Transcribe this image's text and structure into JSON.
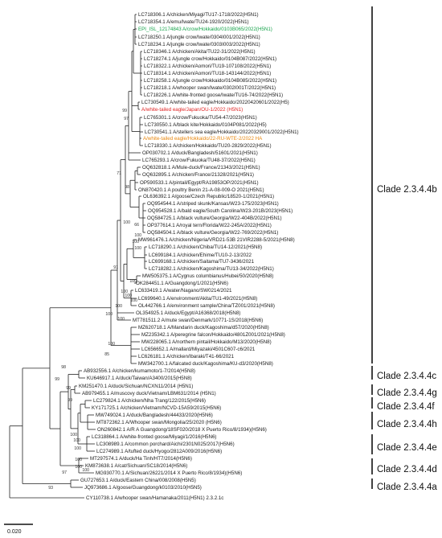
{
  "tips": [
    {
      "label": "LC718306.1 A/chicken/Miyagi/TU17-1718/2022(H5N1)",
      "color": "default"
    },
    {
      "label": "LC718354.1 A/emu/Iwate/TU24-1920/2022(H5N1)",
      "color": "default"
    },
    {
      "label": "EPI_ISL_12174843 A/crow/Hokkaido/0103B065/2022(H5N1)",
      "color": "green"
    },
    {
      "label": "LC718250.1 A/jungle crow/Iwate/0304I001/2022(H5N1)",
      "color": "default"
    },
    {
      "label": "LC718234.1 A/jungle crow/Iwate/0303I003/2022(H5N1)",
      "color": "default"
    },
    {
      "label": "LC718346.1 A/chicken/Akita/TU22-31/2022(H5N1)",
      "color": "default"
    },
    {
      "label": "LC718274.1 A/jungle crow/Hokkaido/0104B087/2022(H5N1)",
      "color": "default"
    },
    {
      "label": "LC718322.1 A/chicken/Aomori/TU19-107108/2022(H5N1)",
      "color": "default"
    },
    {
      "label": "LC718314.1 A/chicken/Aomori/TU18-143144/2022(H5N1)",
      "color": "default"
    },
    {
      "label": "LC718258.1 A/jungle crow/Hokkaido/0104B085/2022(H5N1)",
      "color": "default"
    },
    {
      "label": "LC718218.1 A/whooper swan/Iwate/0302I001T/2022(H5N1)",
      "color": "default"
    },
    {
      "label": "LC718226.1 A/white-fronted goose/Iwate/TU16-74/2022(H5N1)",
      "color": "default"
    },
    {
      "label": "LC730549.1 A/white-tailed eagle/Hokkaido/20220420601/2022(H5)",
      "color": "default"
    },
    {
      "label": "A/white-tailed eagle/Japan/OU-1/2022 (H5N1)",
      "color": "red"
    },
    {
      "label": "LC765301.1 A/crow/Fukuoka/TU54-47/2023(H5N1)",
      "color": "default"
    },
    {
      "label": "LC730550.1 A/black kite/Hokkaido/0104P081/2022(H5)",
      "color": "default"
    },
    {
      "label": "LC730541.1 A/stellers sea eagle/Hokkaido/20220329001/2022(H5N1)",
      "color": "default"
    },
    {
      "label": "A/white-tailed eagle/Hokkaido/22-RU-WTE-2/2022 HA",
      "color": "orange"
    },
    {
      "label": "LC718330.1 A/chicken/Hokkaido/TU20-2829/2022(H5N1)",
      "color": "default"
    },
    {
      "label": "OP030702.1 A/duck/Bangladesh/51601/2021(H5N1)",
      "color": "default"
    },
    {
      "label": "LC765293.1 A/crow/Fukuoka/TU48-37/2022(H5N1)",
      "color": "default"
    },
    {
      "label": "OQ632818.1 A/Mule-duck/France/21343/2021(H5N1)",
      "color": "default"
    },
    {
      "label": "OQ632895.1 A/chicken/France/21328/2021(H5N1)",
      "color": "default"
    },
    {
      "label": "OP590533.1 A/pintail/Egypt/RA19853OP/2021(H5N1)",
      "color": "default"
    },
    {
      "label": "ON870420.1 A poultry Benin 21-A-08-009-O 2021(H5N1)",
      "color": "default"
    },
    {
      "label": "OL636392.1 A/goose/Czech Republic/18520-1/2021(H5N1)",
      "color": "default"
    },
    {
      "label": "OQ954544.1 A/striped skunk/Kansas/W23-175/2023(H5N1)",
      "color": "default"
    },
    {
      "label": "OQ954528.1 A/bald eagle/South Carolina/W23-201B/2023(H5N1)",
      "color": "default"
    },
    {
      "label": "OQ584725.1 A/black vulture/Georgia/W22-404B/2022(H5N1)",
      "color": "default"
    },
    {
      "label": "OP377614.1 A/royal tern/Florida/W22-245A/2022(H5N1)",
      "color": "default"
    },
    {
      "label": "OQ584504.1 A/black vulture/Georgia/W22-769/2022(H5N1)",
      "color": "default"
    },
    {
      "label": "MW961476.1 A/chicken/Nigeria/VRD21-53B 21VIR2288-5/2021(H5N8)",
      "color": "default"
    },
    {
      "label": "LC718290.1 A/chicken/Chiba/TU14-12/2021(H5N8)",
      "color": "default"
    },
    {
      "label": "LC699184.1 A/chicken/Ehime/TU10-2-13/2022",
      "color": "default"
    },
    {
      "label": "LC699168.1 A/chicken/Saitama/TU7-3436/2021",
      "color": "default"
    },
    {
      "label": "LC718282.1 A/chicken/Kagoshima/TU13-34/2022(H5N1)",
      "color": "default"
    },
    {
      "label": "MW505375.1 A/Cygnus columbianus/Hubei/50/2020(H5N8)",
      "color": "default"
    },
    {
      "label": "OK284451.1 A/Guangdong/1/2021(H5N6)",
      "color": "default"
    },
    {
      "label": "LC633419.1 A/water/Nagano/SW0214/2021",
      "color": "default"
    },
    {
      "label": "LC699640.1 A/environment/Akita/TU1-49/2021(H5N8)",
      "color": "default"
    },
    {
      "label": "OL442766.1 A/environment sample/China/TZ001/2021(H5N8)",
      "color": "default"
    },
    {
      "label": "OL354925.1 A/duck/Egypt/A16368/2018(H5N8)",
      "color": "default"
    },
    {
      "label": "MT781511.2 A/mute swan/Denmark/10771-1S/2018(H5N6)",
      "color": "default"
    },
    {
      "label": "MZ620718.1 A/Mandarin duck/Kagoshima/d57/2020(H5N8)",
      "color": "default"
    },
    {
      "label": "MZ235342.1 A/peregrine falcon/Hokkaido/4801Z001/2021(H5N8)",
      "color": "default"
    },
    {
      "label": "MW228065.1 A/northern pintail/Hokkaido/M13/2020(H5N8)",
      "color": "default"
    },
    {
      "label": "LC656652.1 A/mallard/Miyazaki/4501C607-c6/2021",
      "color": "default"
    },
    {
      "label": "LC626181.1 A/chicken/Ibaraki/T41-66/2021",
      "color": "default"
    },
    {
      "label": "MW342700.1 A/falcated duck/Kagoshima/KU-d3/2020(H5N8)",
      "color": "default"
    },
    {
      "label": "AB932556.1 A/chicken/kumamoto/1-7/2014(H5N8)",
      "color": "default"
    },
    {
      "label": "KU646917.1 A/duck/Taiwan/A3400/2015(H5N8)",
      "color": "default"
    },
    {
      "label": "KM251470.1 A/duck/Sichuan/NCXN11/2014 (H5N1)",
      "color": "default"
    },
    {
      "label": "AB979455.1 A/muscovy duck/Vietnam/LBM631/2014 (H5N1)",
      "color": "default"
    },
    {
      "label": "LC279824.1 A/chicken/Nha Trang/122/2015(H5N6)",
      "color": "default"
    },
    {
      "label": "KY171725.1 A/chicken/Vietnam/NCVD-15A59/2015(H5N6)",
      "color": "default"
    },
    {
      "label": "MW749024.1 A/duck/Bangladesh/44433/2020(H5N6)",
      "color": "default"
    },
    {
      "label": "MT872362.1 A/Whooper swan/Mongolia/25/2020   (H5N6)",
      "color": "default"
    },
    {
      "label": "ON260842.1 A/R A Guangdong/18SF020/2018 X Puerto Rico/8/1934)(H5N6)",
      "color": "default"
    },
    {
      "label": "LC318864.1 A/white-fronted goose/Miyagi/1/2016(H5N6)",
      "color": "default"
    },
    {
      "label": "LC308989.1 A/common porchard/Aichi/2301N025/2017(H5N6)",
      "color": "default"
    },
    {
      "label": "LC274989.1 A/tufted duck/Hyogo/2812A009/2016(H5N6)",
      "color": "default"
    },
    {
      "label": "MT297574.1 A/duck/Ha Tinh/HT7/2014(H5N6)",
      "color": "default"
    },
    {
      "label": "KM873638.1 A/cat/Sichuan/SC18/2014(H5N6)",
      "color": "default"
    },
    {
      "label": "MG930770.1 A/Sichuan/26221/2014 X Puerto Rico/8/1934)(H5N6)",
      "color": "default"
    },
    {
      "label": "GU727653.1 A/duck/Eastern China/008/2008(H5N5)",
      "color": "default"
    },
    {
      "label": "JQ973686.1 A/goose/Guangdong/k0103/2010(H5N5)",
      "color": "default"
    },
    {
      "label": "CY110738.1 A/whooper swan/Hamanaka/2011(H5N1) 2.3.2.1c",
      "color": "default"
    }
  ],
  "bootstrap": [
    "99",
    "97",
    "71",
    "98",
    "100",
    "66",
    "100",
    "91",
    "100",
    "100",
    "100",
    "100",
    "100",
    "100",
    "100",
    "100",
    "100",
    "100",
    "85",
    "98",
    "99",
    "99",
    "99",
    "100",
    "100",
    "100",
    "100",
    "100",
    "97",
    "100",
    "93"
  ],
  "clades": [
    "Clade 2.3.4.4b",
    "Clade 2.3.4.4c",
    "Clade 2.3.4.4g",
    "Clade 2.3.4.4f",
    "Clade 2.3.4.4h",
    "Clade 2.3.4.4e",
    "Clade 2.3.4.4d",
    "Clade 2.3.4.4a"
  ],
  "scale_label": "0.020",
  "colors": {
    "default": "#1a1a1a",
    "green": "#16a34a",
    "red": "#e02424",
    "orange": "#e8870e"
  }
}
